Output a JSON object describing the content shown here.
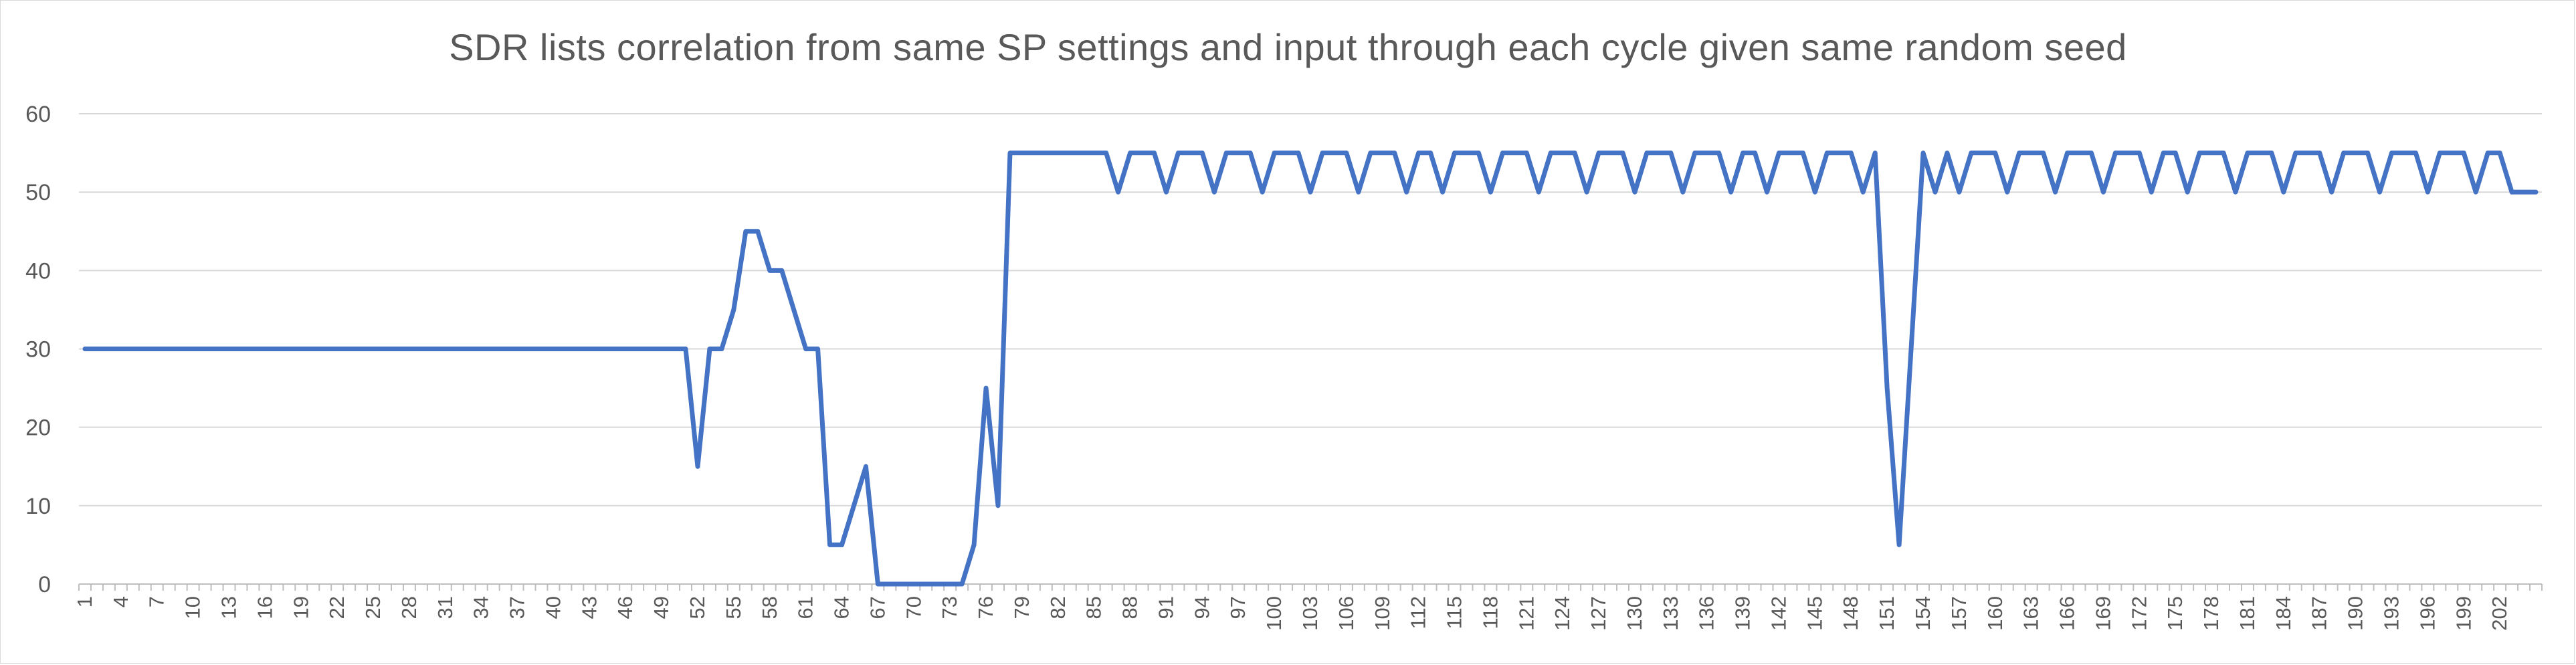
{
  "chart_data": {
    "type": "line",
    "title": "SDR lists correlation from same SP settings and input through each cycle given same random seed",
    "xlabel": "",
    "ylabel": "",
    "ylim": [
      0,
      60
    ],
    "yticks": [
      0,
      10,
      20,
      30,
      40,
      50,
      60
    ],
    "grid": true,
    "legend": "none",
    "x_label_start": 1,
    "x_label_step": 3,
    "x_last_labeled": 202,
    "line_color": "#4472c4",
    "series": [
      {
        "values": [
          30,
          30,
          30,
          30,
          30,
          30,
          30,
          30,
          30,
          30,
          30,
          30,
          30,
          30,
          30,
          30,
          30,
          30,
          30,
          30,
          30,
          30,
          30,
          30,
          30,
          30,
          30,
          30,
          30,
          30,
          30,
          30,
          30,
          30,
          30,
          30,
          30,
          30,
          30,
          30,
          30,
          30,
          30,
          30,
          30,
          30,
          30,
          30,
          30,
          30,
          30,
          15,
          30,
          30,
          35,
          45,
          45,
          40,
          40,
          35,
          30,
          30,
          5,
          5,
          10,
          15,
          0,
          0,
          0,
          0,
          0,
          0,
          0,
          0,
          5,
          25,
          10,
          55,
          55,
          55,
          55,
          55,
          55,
          55,
          55,
          55,
          50,
          55,
          55,
          55,
          50,
          55,
          55,
          55,
          50,
          55,
          55,
          55,
          50,
          55,
          55,
          55,
          50,
          55,
          55,
          55,
          50,
          55,
          55,
          55,
          50,
          55,
          55,
          50,
          55,
          55,
          55,
          50,
          55,
          55,
          55,
          50,
          55,
          55,
          55,
          50,
          55,
          55,
          55,
          50,
          55,
          55,
          55,
          50,
          55,
          55,
          55,
          50,
          55,
          55,
          50,
          55,
          55,
          55,
          50,
          55,
          55,
          55,
          50,
          55,
          25,
          5,
          30,
          55,
          50,
          55,
          50,
          55,
          55,
          55,
          50,
          55,
          55,
          55,
          50,
          55,
          55,
          55,
          50,
          55,
          55,
          55,
          50,
          55,
          55,
          50,
          55,
          55,
          55,
          50,
          55,
          55,
          55,
          50,
          55,
          55,
          55,
          50,
          55,
          55,
          55,
          50,
          55,
          55,
          55,
          50,
          55,
          55,
          55,
          50,
          55,
          55,
          50,
          50,
          50
        ]
      }
    ]
  }
}
